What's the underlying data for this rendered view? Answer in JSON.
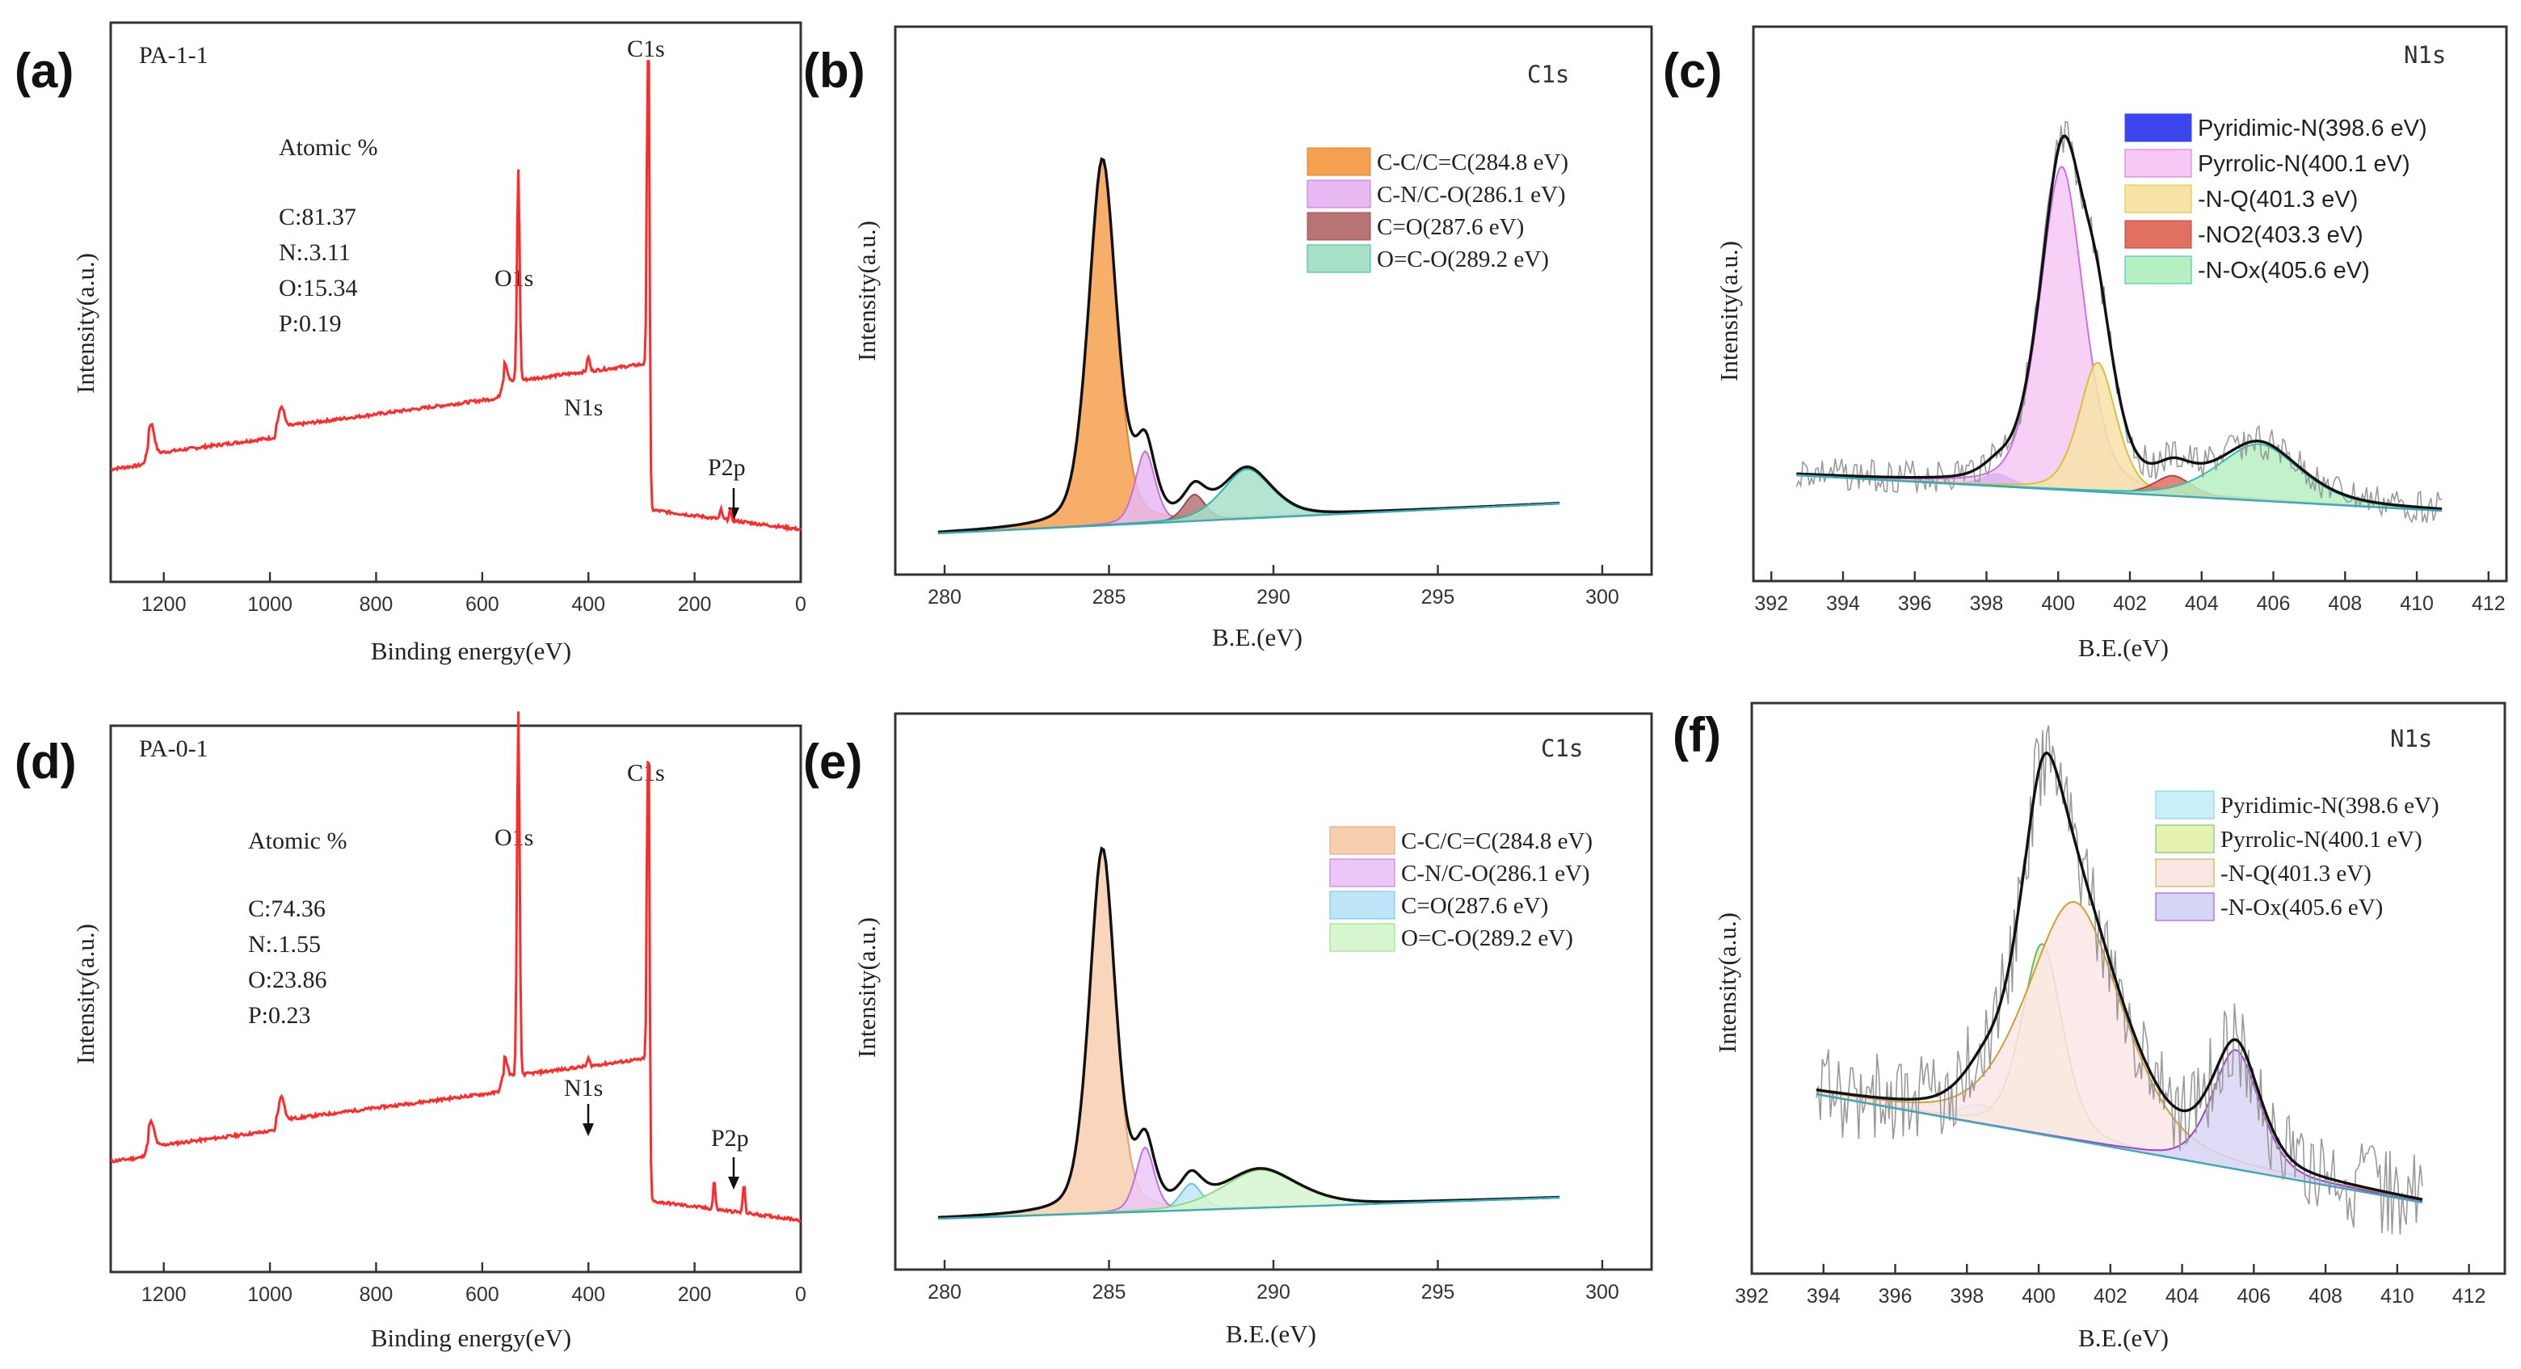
{
  "chart_data": [
    {
      "id": "a",
      "type": "line",
      "panel_label": "(a)",
      "sample": "PA-1-1",
      "xlabel": "Binding energy(eV)",
      "ylabel": "Intensity(a.u.)",
      "xlim": [
        1300,
        0
      ],
      "x_ticks": [
        "1200",
        "1000",
        "800",
        "600",
        "400",
        "200",
        "0"
      ],
      "composition_title": "Atomic %",
      "composition": [
        "C:81.37",
        "N:.3.11",
        "O:15.34",
        "P:0.19"
      ],
      "peak_labels": [
        "C1s",
        "O1s",
        "N1s",
        "P2p"
      ],
      "line_color": "#ff2a2a"
    },
    {
      "id": "b",
      "type": "area",
      "panel_label": "(b)",
      "title": "C1s",
      "xlabel": "B.E.(eV)",
      "ylabel": "Intensity(a.u.)",
      "xlim": [
        278.5,
        301.5
      ],
      "x_ticks": [
        "280",
        "285",
        "290",
        "295",
        "300"
      ],
      "components": [
        {
          "name": "C-C/C=C(284.8 eV)",
          "center": 284.8,
          "height": 0.96,
          "width": 0.45,
          "fill": "#f5a04e",
          "stroke": "#d9852e"
        },
        {
          "name": "C-N/C-O(286.1 eV)",
          "center": 286.1,
          "height": 0.19,
          "width": 0.32,
          "fill": "#e7b8f2",
          "stroke": "#c470d6"
        },
        {
          "name": "C=O(287.6 eV)",
          "center": 287.6,
          "height": 0.07,
          "width": 0.35,
          "fill": "#b87474",
          "stroke": "#9a5050"
        },
        {
          "name": "O=C-O(289.2 eV)",
          "center": 289.2,
          "height": 0.13,
          "width": 0.8,
          "fill": "#a8e0c8",
          "stroke": "#2fb8a6"
        }
      ]
    },
    {
      "id": "c",
      "type": "area",
      "panel_label": "(c)",
      "title": "N1s",
      "xlabel": "B.E.(eV)",
      "ylabel": "Intensity(a.u.)",
      "xlim": [
        391.5,
        412.5
      ],
      "x_ticks": [
        "392",
        "394",
        "396",
        "398",
        "400",
        "402",
        "404",
        "406",
        "408",
        "410",
        "412"
      ],
      "components": [
        {
          "name": "Pyridimic-N(398.6 eV)",
          "center": 398.3,
          "height": 0.03,
          "width": 0.45,
          "fill": "#3c46ee",
          "stroke": "#3c46ee"
        },
        {
          "name": "Pyrrolic-N(400.1 eV)",
          "center": 400.1,
          "height": 0.8,
          "width": 0.65,
          "fill": "#f6c8f3",
          "stroke": "#d070e0"
        },
        {
          "name": "-N-Q(401.3 eV)",
          "center": 401.1,
          "height": 0.32,
          "width": 0.55,
          "fill": "#f7e3a8",
          "stroke": "#d8c03a"
        },
        {
          "name": "-NO2(403.3 eV)",
          "center": 403.2,
          "height": 0.05,
          "width": 0.55,
          "fill": "#e07060",
          "stroke": "#c04040"
        },
        {
          "name": "-N-Ox(405.6 eV)",
          "center": 405.6,
          "height": 0.14,
          "width": 1.2,
          "fill": "#b6f0c0",
          "stroke": "#30c0b8"
        }
      ]
    },
    {
      "id": "d",
      "type": "line",
      "panel_label": "(d)",
      "sample": "PA-0-1",
      "xlabel": "Binding energy(eV)",
      "ylabel": "Intensity(a.u.)",
      "xlim": [
        1300,
        0
      ],
      "x_ticks": [
        "1200",
        "1000",
        "800",
        "600",
        "400",
        "200",
        "0"
      ],
      "composition_title": "Atomic %",
      "composition": [
        "C:74.36",
        "N:.1.55",
        "O:23.86",
        "P:0.23"
      ],
      "peak_labels": [
        "C1s",
        "O1s",
        "N1s",
        "P2p"
      ],
      "line_color": "#ff2a2a"
    },
    {
      "id": "e",
      "type": "area",
      "panel_label": "(e)",
      "title": "C1s",
      "xlabel": "B.E.(eV)",
      "ylabel": "Intensity(a.u.)",
      "xlim": [
        278.5,
        301.5
      ],
      "x_ticks": [
        "280",
        "285",
        "290",
        "295",
        "300"
      ],
      "components": [
        {
          "name": "C-C/C=C(284.8 eV)",
          "center": 284.8,
          "height": 0.96,
          "width": 0.42,
          "fill": "#f8ceb0",
          "stroke": "#e6a070"
        },
        {
          "name": "C-N/C-O(286.1 eV)",
          "center": 286.1,
          "height": 0.17,
          "width": 0.3,
          "fill": "#ecc8f8",
          "stroke": "#c070e0"
        },
        {
          "name": "C=O(287.6 eV)",
          "center": 287.5,
          "height": 0.07,
          "width": 0.35,
          "fill": "#bfe6f8",
          "stroke": "#70c0e6"
        },
        {
          "name": "O=C-O(289.2 eV)",
          "center": 289.6,
          "height": 0.1,
          "width": 1.2,
          "fill": "#d6f6d0",
          "stroke": "#8edc7c"
        }
      ]
    },
    {
      "id": "f",
      "type": "area",
      "panel_label": "(f)",
      "title": "N1s",
      "xlabel": "B.E.(eV)",
      "ylabel": "Intensity(a.u.)",
      "xlim": [
        392,
        413
      ],
      "x_ticks": [
        "392",
        "394",
        "396",
        "398",
        "400",
        "402",
        "404",
        "406",
        "408",
        "410",
        "412"
      ],
      "components": [
        {
          "name": "Pyridimic-N(398.6 eV)",
          "center": 398.4,
          "height": 0.04,
          "width": 0.6,
          "fill": "#c8f0f6",
          "stroke": "#7ccce0"
        },
        {
          "name": "Pyrrolic-N(400.1 eV)",
          "center": 400.1,
          "height": 0.4,
          "width": 0.6,
          "fill": "#e6f2b0",
          "stroke": "#60b878"
        },
        {
          "name": "-N-Q(401.3 eV)",
          "center": 401.0,
          "height": 0.5,
          "width": 1.4,
          "fill": "#fbe6e6",
          "stroke": "#d0a030"
        },
        {
          "name": "-N-Ox(405.6 eV)",
          "center": 405.5,
          "height": 0.25,
          "width": 0.7,
          "fill": "#d8d6f6",
          "stroke": "#a040d0"
        }
      ]
    }
  ]
}
